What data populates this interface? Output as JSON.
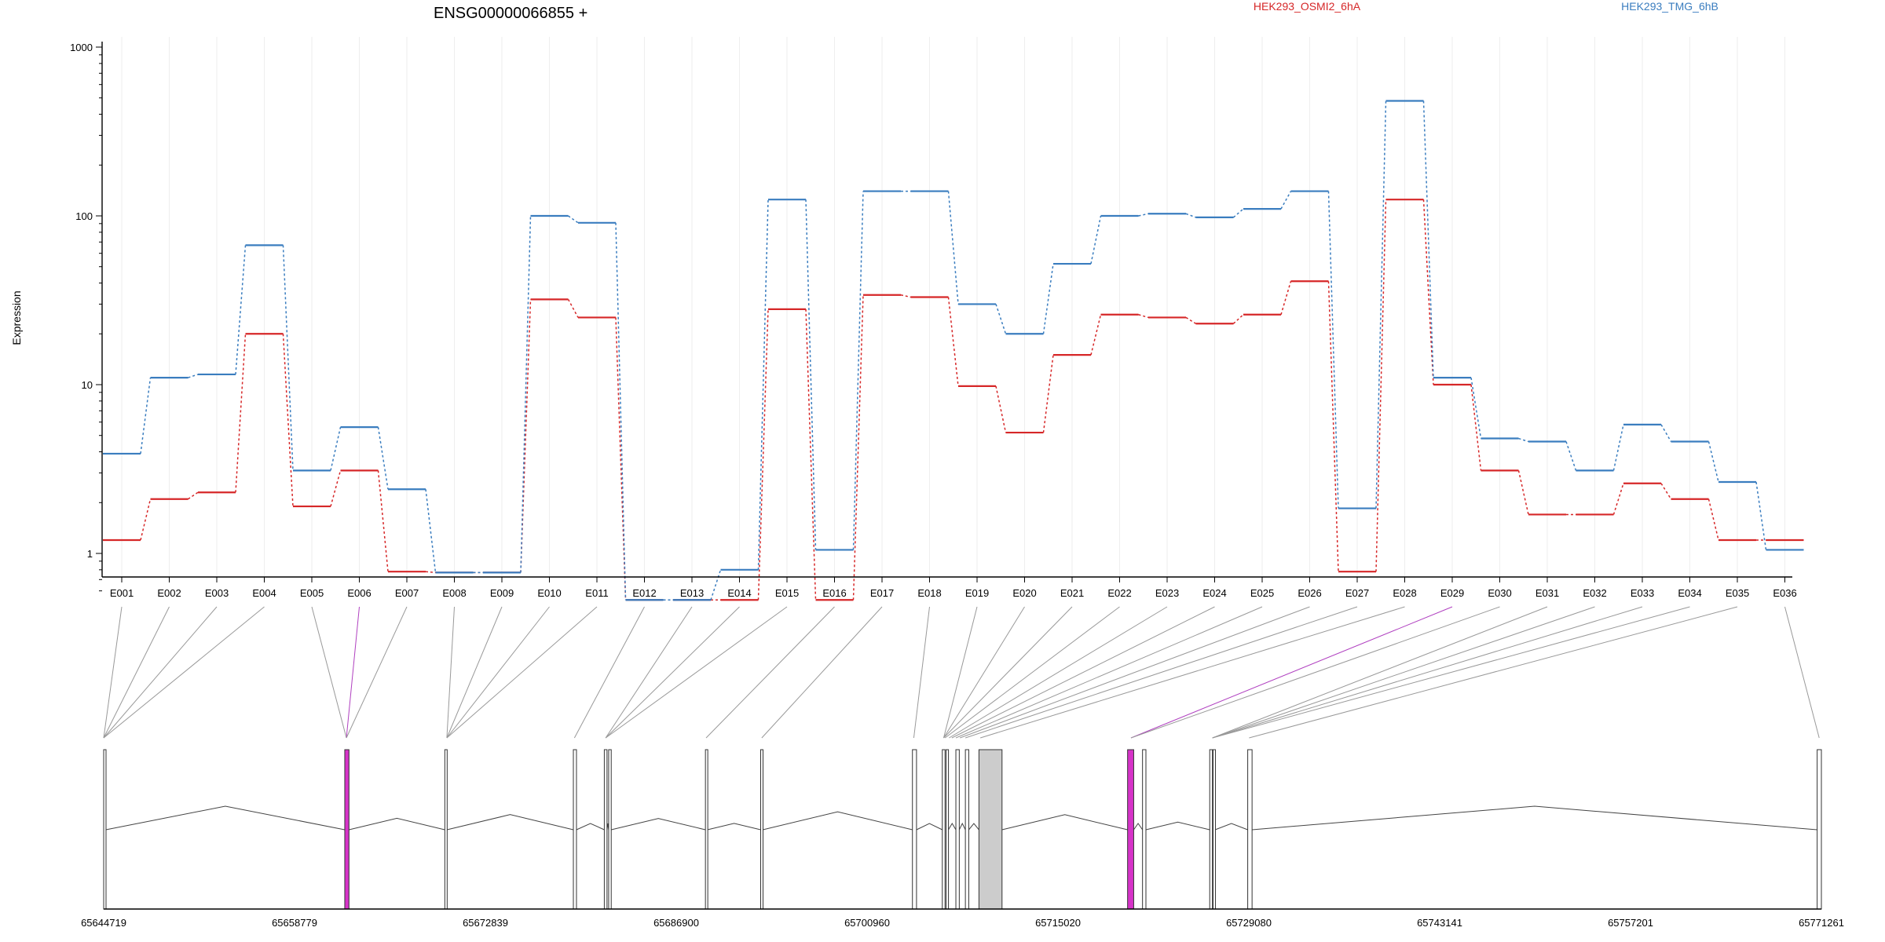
{
  "chart_data": {
    "type": "line",
    "title": "ENSG00000066855 +",
    "ylabel": "Expression",
    "yscale": "log",
    "ylim": [
      0.5,
      1000
    ],
    "y_ticks": [
      {
        "value": 1,
        "label": "1"
      },
      {
        "value": 10,
        "label": "10"
      },
      {
        "value": 100,
        "label": "100"
      },
      {
        "value": 1000,
        "label": "1000"
      }
    ],
    "grid": "vertical",
    "legend_placement": "top",
    "categories": [
      "E001",
      "E002",
      "E003",
      "E004",
      "E005",
      "E006",
      "E007",
      "E008",
      "E009",
      "E010",
      "E011",
      "E012",
      "E013",
      "E014",
      "E015",
      "E016",
      "E017",
      "E018",
      "E019",
      "E020",
      "E021",
      "E022",
      "E023",
      "E024",
      "E025",
      "E026",
      "E027",
      "E028",
      "E029",
      "E030",
      "E031",
      "E032",
      "E033",
      "E034",
      "E035",
      "E036"
    ],
    "series": [
      {
        "name": "HEK293_OSMI2_6hA",
        "color": "#d62728",
        "values": [
          1.2,
          2.1,
          2.3,
          20,
          1.9,
          3.1,
          0.78,
          0.77,
          0.77,
          32,
          25,
          0.53,
          0.53,
          0.53,
          28,
          0.53,
          34,
          33,
          9.8,
          5.2,
          15,
          26,
          25,
          23,
          26,
          41,
          0.78,
          125,
          10,
          3.1,
          1.7,
          1.7,
          2.6,
          2.1,
          1.2,
          1.2
        ]
      },
      {
        "name": "HEK293_TMG_6hB",
        "color": "#3a7dbf",
        "values": [
          3.9,
          11,
          11.5,
          67,
          3.1,
          5.6,
          2.4,
          0.77,
          0.77,
          100,
          91,
          0.53,
          0.53,
          0.8,
          125,
          1.05,
          140,
          140,
          30,
          20,
          52,
          100,
          103,
          98,
          110,
          140,
          1.85,
          480,
          11,
          4.8,
          4.6,
          3.1,
          5.8,
          4.6,
          2.65,
          1.05
        ]
      }
    ],
    "genome": {
      "tick_labels": [
        "65644719",
        "65658779",
        "65672839",
        "65686900",
        "65700960",
        "65715020",
        "65729080",
        "65743141",
        "65757201",
        "65771261"
      ],
      "start": 65644719,
      "end": 65771261,
      "exons": [
        {
          "start": 65644719,
          "end": 65644880,
          "fill": "#ffffff",
          "highlight": false
        },
        {
          "start": 65662480,
          "end": 65662790,
          "fill": "#ffffff",
          "highlight": true
        },
        {
          "start": 65669850,
          "end": 65670010,
          "fill": "#ffffff",
          "highlight": false
        },
        {
          "start": 65679320,
          "end": 65679550,
          "fill": "#ffffff",
          "highlight": false
        },
        {
          "start": 65681600,
          "end": 65681800,
          "fill": "#ffffff",
          "highlight": false
        },
        {
          "start": 65681920,
          "end": 65682110,
          "fill": "#ffffff",
          "highlight": false
        },
        {
          "start": 65689050,
          "end": 65689200,
          "fill": "#ffffff",
          "highlight": false
        },
        {
          "start": 65693120,
          "end": 65693280,
          "fill": "#ffffff",
          "highlight": false
        },
        {
          "start": 65704300,
          "end": 65704600,
          "fill": "#ffffff",
          "highlight": false
        },
        {
          "start": 65706500,
          "end": 65706700,
          "fill": "#ffffff",
          "highlight": false
        },
        {
          "start": 65706780,
          "end": 65706950,
          "fill": "#ffffff",
          "highlight": false
        },
        {
          "start": 65707500,
          "end": 65707750,
          "fill": "#ffffff",
          "highlight": false
        },
        {
          "start": 65708200,
          "end": 65708450,
          "fill": "#ffffff",
          "highlight": false
        },
        {
          "start": 65709200,
          "end": 65710900,
          "fill": "#cccccc",
          "highlight": false
        },
        {
          "start": 65720150,
          "end": 65720600,
          "fill": "#ffffff",
          "highlight": true
        },
        {
          "start": 65721250,
          "end": 65721500,
          "fill": "#ffffff",
          "highlight": false
        },
        {
          "start": 65726200,
          "end": 65726400,
          "fill": "#ffffff",
          "highlight": false
        },
        {
          "start": 65726450,
          "end": 65726600,
          "fill": "#ffffff",
          "highlight": false
        },
        {
          "start": 65729000,
          "end": 65729320,
          "fill": "#ffffff",
          "highlight": false
        },
        {
          "start": 65770950,
          "end": 65771261,
          "fill": "#ffffff",
          "highlight": false
        }
      ],
      "connector_targets": [
        65644719,
        65644719,
        65644719,
        65644719,
        65662600,
        65662600,
        65662600,
        65670000,
        65670000,
        65670000,
        65670000,
        65679400,
        65681700,
        65681700,
        65681700,
        65689100,
        65693200,
        65704400,
        65706600,
        65706600,
        65706600,
        65706700,
        65707000,
        65707200,
        65707500,
        65707800,
        65708200,
        65709300,
        65720400,
        65720400,
        65726400,
        65726400,
        65726400,
        65726400,
        65729100,
        65771100
      ],
      "highlighted_exons": [
        "E006",
        "E029"
      ]
    }
  }
}
